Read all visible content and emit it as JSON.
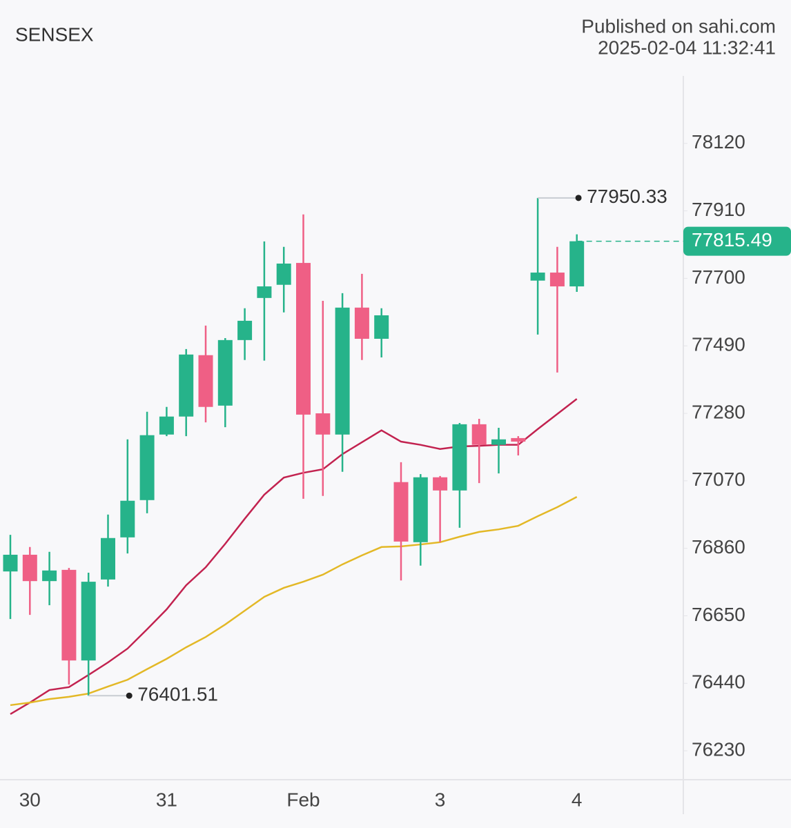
{
  "chart_data": {
    "type": "candlestick",
    "title": "SENSEX",
    "source": "Published on sahi.com",
    "timestamp": "2025-02-04 11:32:41",
    "categories": [
      null,
      "30",
      null,
      null,
      null,
      null,
      null,
      null,
      "31",
      null,
      null,
      null,
      null,
      null,
      null,
      "Feb",
      null,
      null,
      null,
      null,
      null,
      null,
      "3",
      null,
      null,
      null,
      null,
      null,
      null,
      "4"
    ],
    "open": [
      76788,
      76840,
      76758,
      76793,
      76511,
      76763,
      76894,
      77010,
      77214,
      77270,
      77461,
      77304,
      77508,
      77639,
      77680,
      77748,
      77280,
      77214,
      77609,
      77512,
      77066,
      76879,
      77081,
      77040,
      77246,
      77182,
      77203,
      77693,
      77718,
      77675
    ],
    "high": [
      76902,
      76864,
      76849,
      76799,
      76784,
      76965,
      77199,
      77285,
      77300,
      77480,
      77553,
      77514,
      77607,
      77815,
      77798,
      77899,
      77630,
      77654,
      77714,
      77607,
      77128,
      77091,
      77085,
      77250,
      77263,
      77235,
      77209,
      77950.33,
      77798,
      77837
    ],
    "low": [
      76640,
      76653,
      76683,
      76436,
      76401.51,
      76741,
      76844,
      76969,
      77209,
      77209,
      77252,
      77237,
      77446,
      77444,
      77594,
      77014,
      77023,
      77098,
      77446,
      77454,
      76760,
      76806,
      76879,
      76924,
      77063,
      77093,
      77149,
      77525,
      77407,
      77658
    ],
    "close": [
      76840,
      76758,
      76791,
      76511,
      76756,
      76892,
      77008,
      77212,
      77270,
      77463,
      77300,
      77508,
      77568,
      77675,
      77746,
      77276,
      77214,
      77609,
      77512,
      77585,
      76881,
      77081,
      77040,
      77246,
      77182,
      77199,
      77192,
      77718,
      77675,
      77815.49
    ],
    "up_color": "#26b38a",
    "down_color": "#ef5f85",
    "overlays": [
      {
        "color": "#c2224f",
        "values": [
          76344,
          76380,
          76419,
          76428,
          76466,
          76505,
          76548,
          76608,
          76670,
          76745,
          76801,
          76874,
          76952,
          77027,
          77080,
          77095,
          77106,
          77153,
          77190,
          77227,
          77192,
          77182,
          77169,
          77177,
          77179,
          77182,
          77182,
          77231,
          77278,
          77325
        ]
      },
      {
        "color": "#e3b826",
        "values": [
          76372,
          76380,
          76391,
          76398,
          76408,
          76430,
          76451,
          76484,
          76516,
          76552,
          76584,
          76623,
          76666,
          76709,
          76737,
          76756,
          76778,
          76810,
          76838,
          76864,
          76866,
          76872,
          76879,
          76896,
          76911,
          76919,
          76930,
          76960,
          76988,
          77020
        ]
      }
    ],
    "ylim": [
      76140,
      78330
    ],
    "yticks": [
      76230,
      76440,
      76650,
      76860,
      77070,
      77280,
      77490,
      77700,
      77910,
      78120
    ],
    "grid": false
  }
}
